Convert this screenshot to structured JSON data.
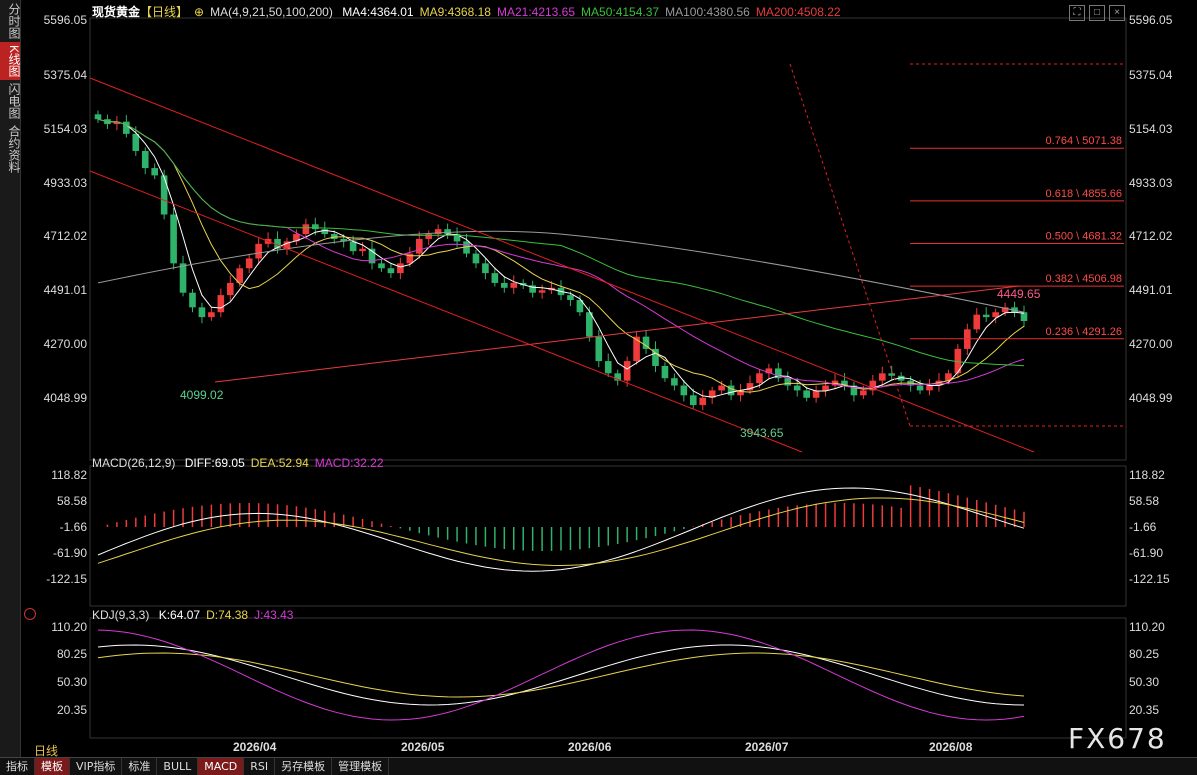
{
  "sidebar": {
    "tabs": [
      "分时图",
      "K线图",
      "闪电图",
      "合约资料"
    ],
    "active": 1
  },
  "header": {
    "symbol": "现货黄金",
    "period": "【日线】",
    "ma_params": "MA(4,9,21,50,100,200)",
    "ma_values": [
      {
        "label": "MA4:4364.01",
        "color": "#ffffff"
      },
      {
        "label": "MA9:4368.18",
        "color": "#e8d44d"
      },
      {
        "label": "MA21:4213.65",
        "color": "#d63ad6"
      },
      {
        "label": "MA50:4154.37",
        "color": "#3bbf3b"
      },
      {
        "label": "MA100:4380.56",
        "color": "#9a9a9a"
      },
      {
        "label": "MA200:4508.22",
        "color": "#e83c3c"
      }
    ]
  },
  "macd_header": {
    "params": "MACD(26,12,9)",
    "items": [
      {
        "label": "DIFF:69.05",
        "color": "#ffffff"
      },
      {
        "label": "DEA:52.94",
        "color": "#e8d44d"
      },
      {
        "label": "MACD:32.22",
        "color": "#d63ad6"
      }
    ]
  },
  "kdj_header": {
    "params": "KDJ(9,3,3)",
    "items": [
      {
        "label": "K:64.07",
        "color": "#ffffff"
      },
      {
        "label": "D:74.38",
        "color": "#e8d44d"
      },
      {
        "label": "J:43.43",
        "color": "#d63ad6"
      }
    ]
  },
  "price_axis": [
    "5596.05",
    "5375.04",
    "5154.03",
    "4933.03",
    "4712.02",
    "4491.01",
    "4270.00",
    "4048.99"
  ],
  "macd_axis": [
    "118.82",
    "58.58",
    "-1.66",
    "-61.90",
    "-122.15"
  ],
  "kdj_axis": [
    "110.20",
    "80.25",
    "50.30",
    "20.35"
  ],
  "x_axis": [
    "2026/04",
    "2026/05",
    "2026/06",
    "2026/07",
    "2026/08"
  ],
  "period_label": "日线",
  "watermark": "FX678",
  "bottom_bar": [
    "指标",
    "模板",
    "VIP指标",
    "标准",
    "BULL",
    "MACD",
    "RSI",
    "另存模板",
    "管理模板"
  ],
  "bottom_active": [
    "模板",
    "MACD"
  ],
  "annotations": {
    "low1": "4099.02",
    "low2": "3943.65",
    "high": "4449.65",
    "fib": [
      {
        "label": "0.764 \\ 5071.38",
        "value": 5071.38
      },
      {
        "label": "0.618 \\ 4855.66",
        "value": 4855.66
      },
      {
        "label": "0.500 \\ 4681.32",
        "value": 4681.32
      },
      {
        "label": "0.382 \\ 4506.98",
        "value": 4506.98
      },
      {
        "label": "0.236 \\ 4291.26",
        "value": 4291.26
      }
    ]
  },
  "colors": {
    "up": "#ef3b3b",
    "down": "#2fb36b",
    "fib": "#e83030"
  },
  "chart_data": {
    "type": "candlestick",
    "title": "现货黄金",
    "price_range": [
      3950,
      5650
    ],
    "closes_approx": [
      5190,
      5170,
      5180,
      5130,
      5060,
      4990,
      4960,
      4800,
      4600,
      4480,
      4420,
      4380,
      4400,
      4470,
      4520,
      4580,
      4620,
      4680,
      4700,
      4660,
      4690,
      4720,
      4760,
      4740,
      4720,
      4700,
      4690,
      4650,
      4660,
      4600,
      4580,
      4560,
      4600,
      4640,
      4700,
      4720,
      4740,
      4720,
      4690,
      4640,
      4600,
      4560,
      4520,
      4500,
      4520,
      4510,
      4480,
      4490,
      4500,
      4470,
      4450,
      4400,
      4300,
      4200,
      4150,
      4120,
      4200,
      4300,
      4250,
      4180,
      4130,
      4100,
      4060,
      4020,
      4050,
      4080,
      4100,
      4060,
      4080,
      4110,
      4150,
      4170,
      4130,
      4100,
      4080,
      4050,
      4080,
      4100,
      4120,
      4100,
      4060,
      4080,
      4120,
      4150,
      4140,
      4120,
      4100,
      4080,
      4100,
      4120,
      4150,
      4250,
      4330,
      4390,
      4380,
      4400,
      4420,
      4400,
      4364
    ]
  }
}
